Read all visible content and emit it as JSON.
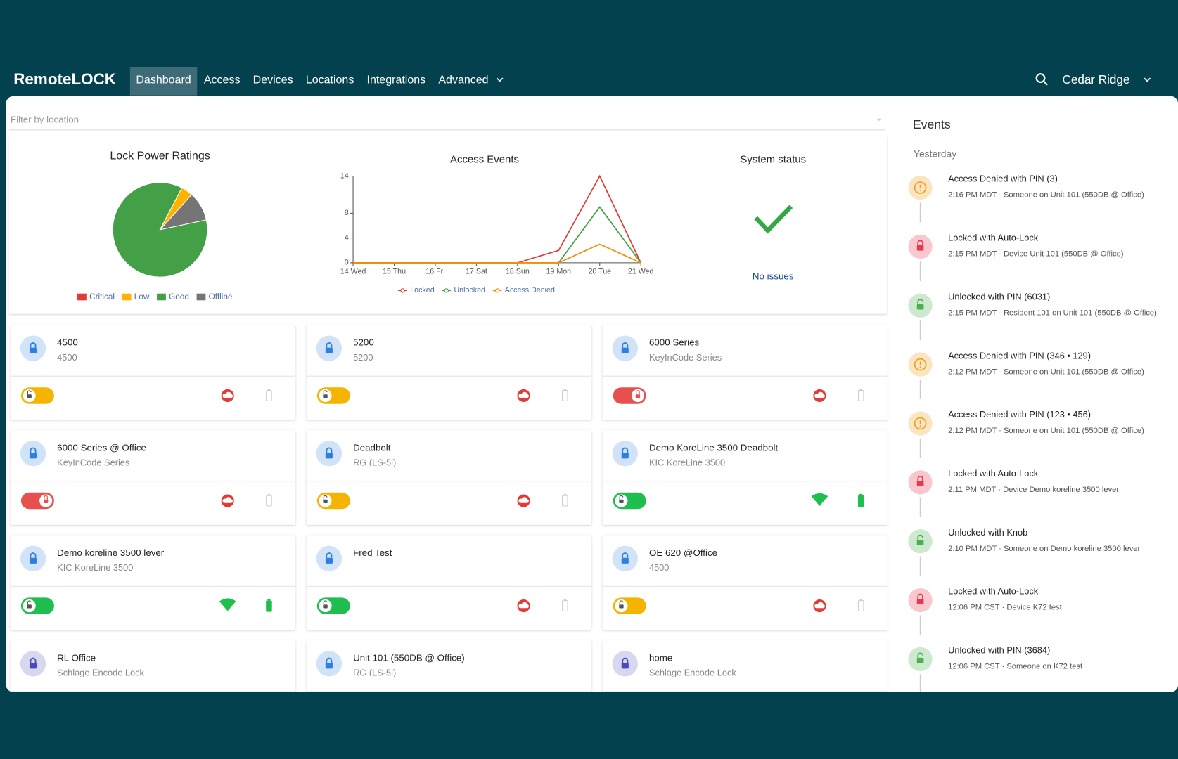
{
  "nav": {
    "brand": "RemoteLOCK",
    "items": [
      "Dashboard",
      "Access",
      "Devices",
      "Locations",
      "Integrations",
      "Advanced"
    ],
    "active": 0,
    "account": "Cedar Ridge"
  },
  "filter": {
    "placeholder": "Filter by location"
  },
  "chart_data": [
    {
      "type": "pie",
      "title": "Lock Power Ratings",
      "categories": [
        "Critical",
        "Low",
        "Good",
        "Offline"
      ],
      "values": [
        0,
        4,
        86,
        10
      ],
      "colors": [
        "#e53935",
        "#ffb300",
        "#43a047",
        "#757575"
      ]
    },
    {
      "type": "line",
      "title": "Access Events",
      "categories": [
        "14 Wed",
        "15 Thu",
        "16 Fri",
        "17 Sat",
        "18 Sun",
        "19 Mon",
        "20 Tue",
        "21 Wed"
      ],
      "series": [
        {
          "name": "Locked",
          "color": "#e53935",
          "values": [
            0,
            0,
            0,
            0,
            0,
            2,
            14,
            0
          ]
        },
        {
          "name": "Unlocked",
          "color": "#43a047",
          "values": [
            0,
            0,
            0,
            0,
            0,
            0,
            9,
            0
          ]
        },
        {
          "name": "Access Denied",
          "color": "#fb8c00",
          "values": [
            0,
            0,
            0,
            0,
            0,
            0,
            3,
            0
          ]
        }
      ],
      "ylim": [
        0,
        14
      ],
      "yticks": [
        0,
        4,
        8,
        14
      ]
    }
  ],
  "system_status": {
    "title": "System status",
    "message": "No issues"
  },
  "devices": [
    {
      "name": "4500",
      "model": "4500",
      "icon_color": "#2e7fe0",
      "toggle_color": "#f5b400",
      "online": false
    },
    {
      "name": "5200",
      "model": "5200",
      "icon_color": "#2e7fe0",
      "toggle_color": "#f5b400",
      "online": false
    },
    {
      "name": "6000 Series",
      "model": "KeyInCode Series",
      "icon_color": "#2e7fe0",
      "toggle_color": "#e85050",
      "online": false
    },
    {
      "name": "6000 Series @ Office",
      "model": "KeyInCode Series",
      "icon_color": "#2e7fe0",
      "toggle_color": "#e85050",
      "online": false
    },
    {
      "name": "Deadbolt",
      "model": "RG (LS-5i)",
      "icon_color": "#2e7fe0",
      "toggle_color": "#f5b400",
      "online": false
    },
    {
      "name": "Demo KoreLine 3500 Deadbolt",
      "model": "KIC KoreLine 3500",
      "icon_color": "#2e7fe0",
      "toggle_color": "#1fbf4f",
      "online": true
    },
    {
      "name": "Demo koreline 3500 lever",
      "model": "KIC KoreLine 3500",
      "icon_color": "#2e7fe0",
      "toggle_color": "#1fbf4f",
      "online": true
    },
    {
      "name": "Fred Test",
      "model": null,
      "icon_color": "#2e7fe0",
      "toggle_color": "#1fbf4f",
      "online": false
    },
    {
      "name": "OE 620 @Office",
      "model": "4500",
      "icon_color": "#2e7fe0",
      "toggle_color": "#f5b400",
      "online": false
    },
    {
      "name": "RL Office",
      "model": "Schlage Encode Lock",
      "icon_color": "#4a4ab8",
      "toggle_color": null,
      "online": false
    },
    {
      "name": "Unit 101 (550DB @ Office)",
      "model": "RG (LS-5i)",
      "icon_color": "#2e7fe0",
      "toggle_color": null,
      "online": false
    },
    {
      "name": "home",
      "model": "Schlage Encode Lock",
      "icon_color": "#4a4ab8",
      "toggle_color": null,
      "online": false
    }
  ],
  "events": {
    "title": "Events",
    "day": "Yesterday",
    "items": [
      {
        "title": "Access Denied with PIN (3)",
        "detail": "2:16 PM MDT · Someone on Unit 101 (550DB @ Office)",
        "icon": "warning",
        "color": "#f0a020"
      },
      {
        "title": "Locked with Auto-Lock",
        "detail": "2:15 PM MDT · Device Unit 101 (550DB @ Office)",
        "icon": "locked",
        "color": "#e53950"
      },
      {
        "title": "Unlocked with PIN (6031)",
        "detail": "2:15 PM MDT · Resident 101 on Unit 101 (550DB @ Office)",
        "icon": "unlocked",
        "color": "#4caf50"
      },
      {
        "title": "Access Denied with PIN (346 • 129)",
        "detail": "2:12 PM MDT · Someone on Unit 101 (550DB @ Office)",
        "icon": "warning",
        "color": "#f0a020"
      },
      {
        "title": "Access Denied with PIN (123 • 456)",
        "detail": "2:12 PM MDT · Someone on Unit 101 (550DB @ Office)",
        "icon": "warning",
        "color": "#f0a020"
      },
      {
        "title": "Locked with Auto-Lock",
        "detail": "2:11 PM MDT · Device Demo koreline 3500 lever",
        "icon": "locked",
        "color": "#e53950"
      },
      {
        "title": "Unlocked with Knob",
        "detail": "2:10 PM MDT · Someone on Demo koreline 3500 lever",
        "icon": "unlocked",
        "color": "#4caf50"
      },
      {
        "title": "Locked with Auto-Lock",
        "detail": "12:06 PM CST · Device K72 test",
        "icon": "locked",
        "color": "#e53950"
      },
      {
        "title": "Unlocked with PIN (3684)",
        "detail": "12:06 PM CST · Someone on K72 test",
        "icon": "unlocked",
        "color": "#4caf50"
      }
    ]
  }
}
